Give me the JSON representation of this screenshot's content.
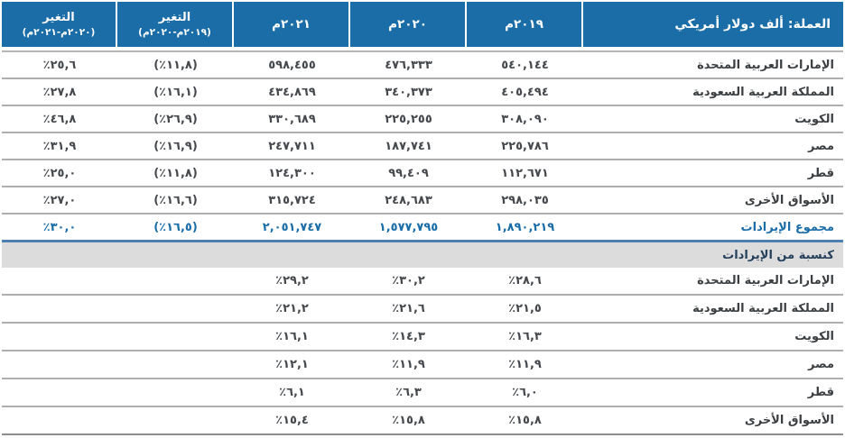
{
  "header": {
    "currency_label": "العملة: ألف دولار أمريكي",
    "years": [
      "٢٠١٩م",
      "٢٠٢٠م",
      "٢٠٢١م"
    ],
    "change_col_1": {
      "line1": "التغير",
      "line2": "(٢٠١٩م-٢٠٢٠م)"
    },
    "change_col_2": {
      "line1": "التغير",
      "line2": "(٢٠٢٠م-٢٠٢١م)"
    }
  },
  "revenue_rows": [
    {
      "label": "الإمارات العربية المتحدة",
      "y2019": "٥٤٠,١٤٤",
      "y2020": "٤٧٦,٣٣٣",
      "y2021": "٥٩٨,٤٥٥",
      "change1": "(١١,٨٪)",
      "change2": "٢٥,٦٪"
    },
    {
      "label": "المملكة العربية السعودية",
      "y2019": "٤٠٥,٤٩٤",
      "y2020": "٣٤٠,٣٧٣",
      "y2021": "٤٣٤,٨٦٩",
      "change1": "(١٦,١٪)",
      "change2": "٢٧,٨٪"
    },
    {
      "label": "الكويت",
      "y2019": "٣٠٨,٠٩٠",
      "y2020": "٢٢٥,٢٥٥",
      "y2021": "٣٣٠,٦٨٩",
      "change1": "(٢٦,٩٪)",
      "change2": "٤٦,٨٪"
    },
    {
      "label": "مصر",
      "y2019": "٢٢٥,٧٨٦",
      "y2020": "١٨٧,٧٤١",
      "y2021": "٢٤٧,٧١١",
      "change1": "(١٦,٩٪)",
      "change2": "٣١,٩٪"
    },
    {
      "label": "قطر",
      "y2019": "١١٢,٦٧١",
      "y2020": "٩٩,٤٠٩",
      "y2021": "١٢٤,٣٠٠",
      "change1": "(١١,٨٪)",
      "change2": "٢٥,٠٪"
    },
    {
      "label": "الأسواق الأخرى",
      "y2019": "٢٩٨,٠٣٥",
      "y2020": "٢٤٨,٦٨٣",
      "y2021": "٣١٥,٧٢٤",
      "change1": "(١٦,٦٪)",
      "change2": "٢٧,٠٪"
    }
  ],
  "total_row": {
    "label": "مجموع الإيرادات",
    "y2019": "١,٨٩٠,٢١٩",
    "y2020": "١,٥٧٧,٧٩٥",
    "y2021": "٢,٠٥١,٧٤٧",
    "change1": "(١٦,٥٪)",
    "change2": "٣٠,٠٪"
  },
  "section_header": "كنسبة من الإيرادات",
  "share_rows": [
    {
      "label": "الإمارات العربية المتحدة",
      "y2019": "٢٨,٦٪",
      "y2020": "٣٠,٢٪",
      "y2021": "٢٩,٢٪"
    },
    {
      "label": "المملكة العربية السعودية",
      "y2019": "٢١,٥٪",
      "y2020": "٢١,٦٪",
      "y2021": "٢١,٢٪"
    },
    {
      "label": "الكويت",
      "y2019": "١٦,٣٪",
      "y2020": "١٤,٣٪",
      "y2021": "١٦,١٪"
    },
    {
      "label": "مصر",
      "y2019": "١١,٩٪",
      "y2020": "١١,٩٪",
      "y2021": "١٢,١٪"
    },
    {
      "label": "قطر",
      "y2019": "٦,٠٪",
      "y2020": "٦,٣٪",
      "y2021": "٦,١٪"
    },
    {
      "label": "الأسواق الأخرى",
      "y2019": "١٥,٨٪",
      "y2020": "١٥,٨٪",
      "y2021": "١٥,٤٪"
    }
  ],
  "colors": {
    "header_bg": "#1a6da7",
    "total_text": "#1a6da7",
    "total_divider": "#4d7fb0",
    "section_bg": "#dcdcdc",
    "row_divider": "#aeaeae",
    "bottom_border": "#8d8d8d",
    "body_text": "#45494d"
  },
  "chart_data": {
    "type": "table",
    "title": "العملة: ألف دولار أمريكي",
    "columns": [
      "market",
      "2019",
      "2020",
      "2021",
      "change_2019_2020_pct",
      "change_2020_2021_pct"
    ],
    "revenues_thousand_usd": [
      {
        "market": "الإمارات العربية المتحدة",
        "y2019": 540144,
        "y2020": 476333,
        "y2021": 598455,
        "change_2019_2020_pct": -11.8,
        "change_2020_2021_pct": 25.6
      },
      {
        "market": "المملكة العربية السعودية",
        "y2019": 405494,
        "y2020": 340373,
        "y2021": 434869,
        "change_2019_2020_pct": -16.1,
        "change_2020_2021_pct": 27.8
      },
      {
        "market": "الكويت",
        "y2019": 308090,
        "y2020": 225255,
        "y2021": 330689,
        "change_2019_2020_pct": -26.9,
        "change_2020_2021_pct": 46.8
      },
      {
        "market": "مصر",
        "y2019": 225786,
        "y2020": 187741,
        "y2021": 247711,
        "change_2019_2020_pct": -16.9,
        "change_2020_2021_pct": 31.9
      },
      {
        "market": "قطر",
        "y2019": 112671,
        "y2020": 99409,
        "y2021": 124300,
        "change_2019_2020_pct": -11.8,
        "change_2020_2021_pct": 25.0
      },
      {
        "market": "الأسواق الأخرى",
        "y2019": 298035,
        "y2020": 248683,
        "y2021": 315724,
        "change_2019_2020_pct": -16.6,
        "change_2020_2021_pct": 27.0
      }
    ],
    "total_revenues_thousand_usd": {
      "y2019": 1890219,
      "y2020": 1577795,
      "y2021": 2051747,
      "change_2019_2020_pct": -16.5,
      "change_2020_2021_pct": 30.0
    },
    "share_of_revenues_pct": [
      {
        "market": "الإمارات العربية المتحدة",
        "y2019": 28.6,
        "y2020": 30.2,
        "y2021": 29.2
      },
      {
        "market": "المملكة العربية السعودية",
        "y2019": 21.5,
        "y2020": 21.6,
        "y2021": 21.2
      },
      {
        "market": "الكويت",
        "y2019": 16.3,
        "y2020": 14.3,
        "y2021": 16.1
      },
      {
        "market": "مصر",
        "y2019": 11.9,
        "y2020": 11.9,
        "y2021": 12.1
      },
      {
        "market": "قطر",
        "y2019": 6.0,
        "y2020": 6.3,
        "y2021": 6.1
      },
      {
        "market": "الأسواق الأخرى",
        "y2019": 15.8,
        "y2020": 15.8,
        "y2021": 15.4
      }
    ]
  }
}
